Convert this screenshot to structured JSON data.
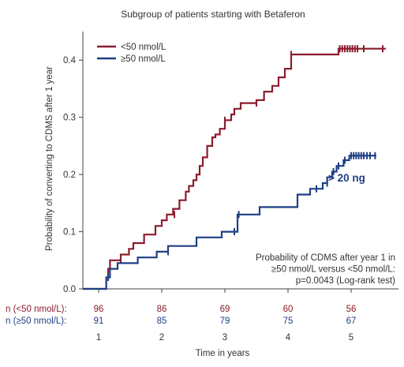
{
  "chart_data": {
    "type": "line",
    "title": "Subgroup of patients starting with Betaferon",
    "xlabel": "Time in years",
    "ylabel": "Probability of converting to CDMS after 1 year",
    "xlim": [
      0.75,
      5.75
    ],
    "ylim": [
      0,
      0.45
    ],
    "yticks": [
      0.0,
      0.1,
      0.2,
      0.3,
      0.4
    ],
    "ytick_labels": [
      "0.0",
      "0.1",
      "0.2",
      "0.3",
      "0.4"
    ],
    "xticks": [
      1,
      2,
      3,
      4,
      5
    ],
    "xtick_labels": [
      "1",
      "2",
      "3",
      "4",
      "5"
    ],
    "grid": false,
    "legend_position": "top-left",
    "series": [
      {
        "name": "<50 nmol/L",
        "color": "#8b1c2c",
        "step_points": [
          [
            0.75,
            0.0
          ],
          [
            1.12,
            0.0
          ],
          [
            1.12,
            0.02
          ],
          [
            1.15,
            0.02
          ],
          [
            1.15,
            0.035
          ],
          [
            1.18,
            0.035
          ],
          [
            1.18,
            0.05
          ],
          [
            1.35,
            0.05
          ],
          [
            1.35,
            0.06
          ],
          [
            1.48,
            0.06
          ],
          [
            1.48,
            0.07
          ],
          [
            1.55,
            0.07
          ],
          [
            1.55,
            0.08
          ],
          [
            1.72,
            0.08
          ],
          [
            1.72,
            0.095
          ],
          [
            1.9,
            0.095
          ],
          [
            1.9,
            0.11
          ],
          [
            2.0,
            0.11
          ],
          [
            2.0,
            0.12
          ],
          [
            2.08,
            0.12
          ],
          [
            2.08,
            0.13
          ],
          [
            2.18,
            0.13
          ],
          [
            2.18,
            0.14
          ],
          [
            2.28,
            0.14
          ],
          [
            2.28,
            0.155
          ],
          [
            2.38,
            0.155
          ],
          [
            2.38,
            0.17
          ],
          [
            2.43,
            0.17
          ],
          [
            2.43,
            0.18
          ],
          [
            2.5,
            0.18
          ],
          [
            2.5,
            0.19
          ],
          [
            2.55,
            0.19
          ],
          [
            2.55,
            0.2
          ],
          [
            2.6,
            0.2
          ],
          [
            2.6,
            0.215
          ],
          [
            2.65,
            0.215
          ],
          [
            2.65,
            0.23
          ],
          [
            2.72,
            0.23
          ],
          [
            2.72,
            0.25
          ],
          [
            2.8,
            0.25
          ],
          [
            2.8,
            0.265
          ],
          [
            2.85,
            0.265
          ],
          [
            2.85,
            0.27
          ],
          [
            2.92,
            0.27
          ],
          [
            2.92,
            0.28
          ],
          [
            3.0,
            0.28
          ],
          [
            3.0,
            0.295
          ],
          [
            3.1,
            0.295
          ],
          [
            3.1,
            0.305
          ],
          [
            3.15,
            0.305
          ],
          [
            3.15,
            0.315
          ],
          [
            3.25,
            0.315
          ],
          [
            3.25,
            0.325
          ],
          [
            3.5,
            0.325
          ],
          [
            3.5,
            0.33
          ],
          [
            3.62,
            0.33
          ],
          [
            3.62,
            0.345
          ],
          [
            3.75,
            0.345
          ],
          [
            3.75,
            0.355
          ],
          [
            3.85,
            0.355
          ],
          [
            3.85,
            0.37
          ],
          [
            3.95,
            0.37
          ],
          [
            3.95,
            0.385
          ],
          [
            4.05,
            0.385
          ],
          [
            4.05,
            0.41
          ],
          [
            4.8,
            0.41
          ],
          [
            4.8,
            0.42
          ],
          [
            5.55,
            0.42
          ]
        ],
        "censor_points": [
          [
            1.35,
            0.05
          ],
          [
            2.2,
            0.13
          ],
          [
            3.0,
            0.295
          ],
          [
            3.5,
            0.325
          ],
          [
            4.05,
            0.41
          ],
          [
            4.82,
            0.42
          ],
          [
            4.86,
            0.42
          ],
          [
            4.9,
            0.42
          ],
          [
            4.94,
            0.42
          ],
          [
            4.98,
            0.42
          ],
          [
            5.02,
            0.42
          ],
          [
            5.06,
            0.42
          ],
          [
            5.1,
            0.42
          ],
          [
            5.2,
            0.42
          ],
          [
            5.5,
            0.42
          ]
        ]
      },
      {
        "name": "≥50 nmol/L",
        "color": "#1e3f85",
        "step_points": [
          [
            0.75,
            0.0
          ],
          [
            1.12,
            0.0
          ],
          [
            1.12,
            0.02
          ],
          [
            1.18,
            0.02
          ],
          [
            1.18,
            0.035
          ],
          [
            1.3,
            0.035
          ],
          [
            1.3,
            0.045
          ],
          [
            1.62,
            0.045
          ],
          [
            1.62,
            0.055
          ],
          [
            1.92,
            0.055
          ],
          [
            1.92,
            0.065
          ],
          [
            2.1,
            0.065
          ],
          [
            2.1,
            0.075
          ],
          [
            2.55,
            0.075
          ],
          [
            2.55,
            0.09
          ],
          [
            2.95,
            0.09
          ],
          [
            2.95,
            0.1
          ],
          [
            3.2,
            0.1
          ],
          [
            3.2,
            0.13
          ],
          [
            3.55,
            0.13
          ],
          [
            3.55,
            0.143
          ],
          [
            4.15,
            0.143
          ],
          [
            4.15,
            0.165
          ],
          [
            4.35,
            0.165
          ],
          [
            4.35,
            0.175
          ],
          [
            4.55,
            0.175
          ],
          [
            4.55,
            0.185
          ],
          [
            4.62,
            0.185
          ],
          [
            4.62,
            0.195
          ],
          [
            4.7,
            0.195
          ],
          [
            4.7,
            0.205
          ],
          [
            4.77,
            0.205
          ],
          [
            4.77,
            0.215
          ],
          [
            4.88,
            0.215
          ],
          [
            4.88,
            0.225
          ],
          [
            4.97,
            0.225
          ],
          [
            4.97,
            0.233
          ],
          [
            5.4,
            0.233
          ]
        ],
        "censor_points": [
          [
            1.15,
            0.02
          ],
          [
            2.1,
            0.065
          ],
          [
            3.15,
            0.1
          ],
          [
            3.22,
            0.13
          ],
          [
            4.45,
            0.175
          ],
          [
            4.62,
            0.185
          ],
          [
            4.72,
            0.205
          ],
          [
            4.8,
            0.215
          ],
          [
            4.9,
            0.225
          ],
          [
            5.0,
            0.233
          ],
          [
            5.04,
            0.233
          ],
          [
            5.08,
            0.233
          ],
          [
            5.12,
            0.233
          ],
          [
            5.16,
            0.233
          ],
          [
            5.2,
            0.233
          ],
          [
            5.25,
            0.233
          ],
          [
            5.3,
            0.233
          ],
          [
            5.38,
            0.233
          ]
        ]
      }
    ],
    "risk_table": [
      {
        "label": "n (<50 nmol/L):",
        "color": "#8b1c2c",
        "values": [
          "96",
          "86",
          "69",
          "60",
          "56"
        ]
      },
      {
        "label": "n (≥50 nmol/L):",
        "color": "#1e3f85",
        "values": [
          "91",
          "85",
          "79",
          "75",
          "67"
        ]
      }
    ],
    "annotations": {
      "stat_lines": [
        "Probability of CDMS after year 1 in",
        "≥50 nmol/L versus <50 nmol/L:",
        "p=0.0043 (Log-rank test)"
      ],
      "callout": "> 20 ng",
      "callout_color": "#1e3f85"
    }
  }
}
